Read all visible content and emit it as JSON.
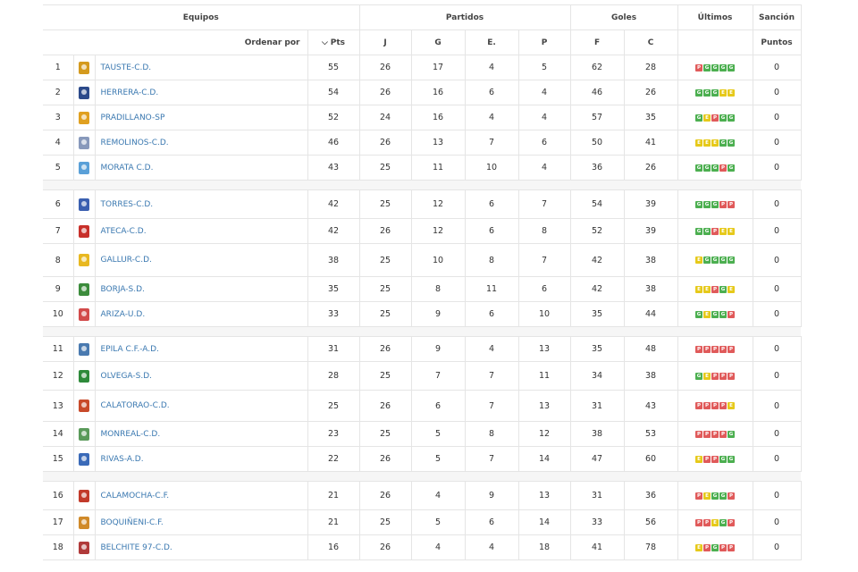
{
  "header": {
    "equipos": "Equipos",
    "partidos": "Partidos",
    "goles": "Goles",
    "ultimos": "Últimos",
    "sancion": "Sanción",
    "ordenar_por": "Ordenar por",
    "sort_icon": "chevron-down-icon",
    "pts": "Pts",
    "j": "J",
    "g": "G",
    "e": "E.",
    "p": "P",
    "f": "F",
    "c": "C",
    "puntos": "Puntos"
  },
  "colors": {
    "win": "#4caf50",
    "draw": "#e6c91a",
    "loss": "#e05a5a",
    "link": "#3a78b0"
  },
  "groups": [
    [
      {
        "pos": "1",
        "team": "TAUSTE-C.D.",
        "pts": "55",
        "j": "26",
        "g": "17",
        "e": "4",
        "p": "5",
        "f": "62",
        "c": "28",
        "ult": [
          "P",
          "G",
          "G",
          "G",
          "G"
        ],
        "san": "0",
        "crest": "#d49a1e"
      },
      {
        "pos": "2",
        "team": "HERRERA-C.D.",
        "pts": "54",
        "j": "26",
        "g": "16",
        "e": "6",
        "p": "4",
        "f": "46",
        "c": "26",
        "ult": [
          "G",
          "G",
          "G",
          "E",
          "E"
        ],
        "san": "0",
        "crest": "#2c4a8a"
      },
      {
        "pos": "3",
        "team": "PRADILLANO-SP",
        "pts": "52",
        "j": "24",
        "g": "16",
        "e": "4",
        "p": "4",
        "f": "57",
        "c": "35",
        "ult": [
          "G",
          "E",
          "P",
          "G",
          "G"
        ],
        "san": "0",
        "crest": "#e0a020"
      },
      {
        "pos": "4",
        "team": "REMOLINOS-C.D.",
        "pts": "46",
        "j": "26",
        "g": "13",
        "e": "7",
        "p": "6",
        "f": "50",
        "c": "41",
        "ult": [
          "E",
          "E",
          "E",
          "G",
          "G"
        ],
        "san": "0",
        "crest": "#8899bb"
      },
      {
        "pos": "5",
        "team": "MORATA C.D.",
        "pts": "43",
        "j": "25",
        "g": "11",
        "e": "10",
        "p": "4",
        "f": "36",
        "c": "26",
        "ult": [
          "G",
          "G",
          "G",
          "P",
          "G"
        ],
        "san": "0",
        "crest": "#5aa0d8"
      }
    ],
    [
      {
        "pos": "6",
        "team": "TORRES-C.D.",
        "pts": "42",
        "j": "25",
        "g": "12",
        "e": "6",
        "p": "7",
        "f": "54",
        "c": "39",
        "ult": [
          "G",
          "G",
          "G",
          "P",
          "P"
        ],
        "san": "0",
        "crest": "#3a5fb0"
      },
      {
        "pos": "7",
        "team": "ATECA-C.D.",
        "pts": "42",
        "j": "26",
        "g": "12",
        "e": "6",
        "p": "8",
        "f": "52",
        "c": "39",
        "ult": [
          "G",
          "G",
          "P",
          "E",
          "E"
        ],
        "san": "0",
        "crest": "#c8302a"
      },
      {
        "pos": "8",
        "team": "GALLUR-C.D.",
        "pts": "38",
        "j": "25",
        "g": "10",
        "e": "8",
        "p": "7",
        "f": "42",
        "c": "38",
        "ult": [
          "E",
          "G",
          "G",
          "G",
          "G"
        ],
        "san": "0",
        "crest": "#e8b820"
      },
      {
        "pos": "9",
        "team": "BORJA-S.D.",
        "pts": "35",
        "j": "25",
        "g": "8",
        "e": "11",
        "p": "6",
        "f": "42",
        "c": "38",
        "ult": [
          "E",
          "E",
          "P",
          "G",
          "E"
        ],
        "san": "0",
        "crest": "#3c8c3c"
      },
      {
        "pos": "10",
        "team": "ARIZA-U.D.",
        "pts": "33",
        "j": "25",
        "g": "9",
        "e": "6",
        "p": "10",
        "f": "35",
        "c": "44",
        "ult": [
          "G",
          "E",
          "G",
          "G",
          "P"
        ],
        "san": "0",
        "crest": "#d24a4a"
      }
    ],
    [
      {
        "pos": "11",
        "team": "EPILA C.F.-A.D.",
        "pts": "31",
        "j": "26",
        "g": "9",
        "e": "4",
        "p": "13",
        "f": "35",
        "c": "48",
        "ult": [
          "P",
          "P",
          "P",
          "P",
          "P"
        ],
        "san": "0",
        "crest": "#4a7ab0"
      },
      {
        "pos": "12",
        "team": "OLVEGA-S.D.",
        "pts": "28",
        "j": "25",
        "g": "7",
        "e": "7",
        "p": "11",
        "f": "34",
        "c": "38",
        "ult": [
          "G",
          "E",
          "P",
          "P",
          "P"
        ],
        "san": "0",
        "crest": "#2e8a3a"
      },
      {
        "pos": "13",
        "team": "CALATORAO-C.D.",
        "pts": "25",
        "j": "26",
        "g": "6",
        "e": "7",
        "p": "13",
        "f": "31",
        "c": "43",
        "ult": [
          "P",
          "P",
          "P",
          "P",
          "E"
        ],
        "san": "0",
        "crest": "#c84a2a"
      },
      {
        "pos": "14",
        "team": "MONREAL-C.D.",
        "pts": "23",
        "j": "25",
        "g": "5",
        "e": "8",
        "p": "12",
        "f": "38",
        "c": "53",
        "ult": [
          "P",
          "P",
          "P",
          "P",
          "G"
        ],
        "san": "0",
        "crest": "#5a9a5a"
      },
      {
        "pos": "15",
        "team": "RIVAS-A.D.",
        "pts": "22",
        "j": "26",
        "g": "5",
        "e": "7",
        "p": "14",
        "f": "47",
        "c": "60",
        "ult": [
          "E",
          "P",
          "P",
          "G",
          "G"
        ],
        "san": "0",
        "crest": "#3a6ab8"
      }
    ],
    [
      {
        "pos": "16",
        "team": "CALAMOCHA-C.F.",
        "pts": "21",
        "j": "26",
        "g": "4",
        "e": "9",
        "p": "13",
        "f": "31",
        "c": "36",
        "ult": [
          "P",
          "E",
          "G",
          "G",
          "P"
        ],
        "san": "0",
        "crest": "#c23a2a"
      },
      {
        "pos": "17",
        "team": "BOQUIÑENI-C.F.",
        "pts": "21",
        "j": "25",
        "g": "5",
        "e": "6",
        "p": "14",
        "f": "33",
        "c": "56",
        "ult": [
          "P",
          "P",
          "E",
          "G",
          "P"
        ],
        "san": "0",
        "crest": "#d08a2a"
      },
      {
        "pos": "18",
        "team": "BELCHITE 97-C.D.",
        "pts": "16",
        "j": "26",
        "g": "4",
        "e": "4",
        "p": "18",
        "f": "41",
        "c": "78",
        "ult": [
          "E",
          "P",
          "G",
          "P",
          "P"
        ],
        "san": "0",
        "crest": "#b03a3a"
      }
    ]
  ]
}
